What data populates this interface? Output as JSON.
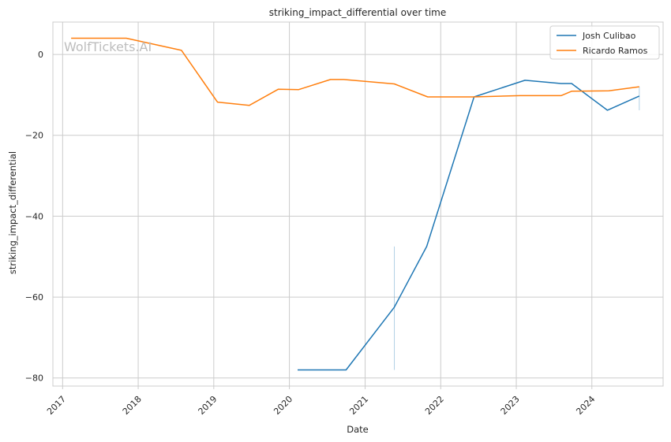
{
  "chart_data": {
    "type": "line",
    "title": "striking_impact_differential over time",
    "xlabel": "Date",
    "ylabel": "striking_impact_differential",
    "watermark": "WolfTickets.AI",
    "xlim": [
      "2016-11-15",
      "2024-12-10"
    ],
    "ylim": [
      -82,
      8
    ],
    "x_ticks": [
      "2017-01-01",
      "2018-01-01",
      "2019-01-01",
      "2020-01-01",
      "2021-01-01",
      "2022-01-01",
      "2023-01-01",
      "2024-01-01"
    ],
    "x_tick_labels": [
      "2017",
      "2018",
      "2019",
      "2020",
      "2021",
      "2022",
      "2023",
      "2024"
    ],
    "y_ticks": [
      0,
      -20,
      -40,
      -60,
      -80
    ],
    "y_tick_labels": [
      "0",
      "−20",
      "−40",
      "−60",
      "−80"
    ],
    "grid": true,
    "legend_position": "top-right",
    "series": [
      {
        "name": "Josh Culibao",
        "color": "#1f77b4",
        "points": [
          [
            "2020-02-10",
            -78
          ],
          [
            "2020-10-01",
            -78
          ],
          [
            "2021-05-22",
            -62.5
          ],
          [
            "2021-10-25",
            -47.5
          ],
          [
            "2022-06-11",
            -10.5
          ],
          [
            "2023-02-12",
            -6.4
          ],
          [
            "2023-08-05",
            -7.2
          ],
          [
            "2023-09-25",
            -7.2
          ],
          [
            "2024-03-16",
            -13.8
          ],
          [
            "2024-08-17",
            -10.3
          ]
        ]
      },
      {
        "name": "Ricardo Ramos",
        "color": "#ff7f0e",
        "points": [
          [
            "2017-02-11",
            4
          ],
          [
            "2017-11-04",
            4
          ],
          [
            "2018-07-29",
            1
          ],
          [
            "2019-01-19",
            -11.8
          ],
          [
            "2019-06-22",
            -12.6
          ],
          [
            "2019-11-09",
            -8.6
          ],
          [
            "2020-02-15",
            -8.7
          ],
          [
            "2020-07-18",
            -6.2
          ],
          [
            "2020-09-19",
            -6.2
          ],
          [
            "2021-05-22",
            -7.3
          ],
          [
            "2021-10-30",
            -10.5
          ],
          [
            "2022-06-11",
            -10.5
          ],
          [
            "2023-01-20",
            -10.2
          ],
          [
            "2023-08-05",
            -10.2
          ],
          [
            "2023-09-25",
            -9.1
          ],
          [
            "2024-03-23",
            -9
          ],
          [
            "2024-08-17",
            -8
          ]
        ]
      }
    ],
    "error_bars": [
      {
        "x": "2021-05-22",
        "y_low": -78,
        "y_high": -47.5,
        "color": "#1f77b4"
      },
      {
        "x": "2024-08-17",
        "y_low": -13.8,
        "y_high": -8,
        "color": "#1f77b4"
      }
    ]
  }
}
